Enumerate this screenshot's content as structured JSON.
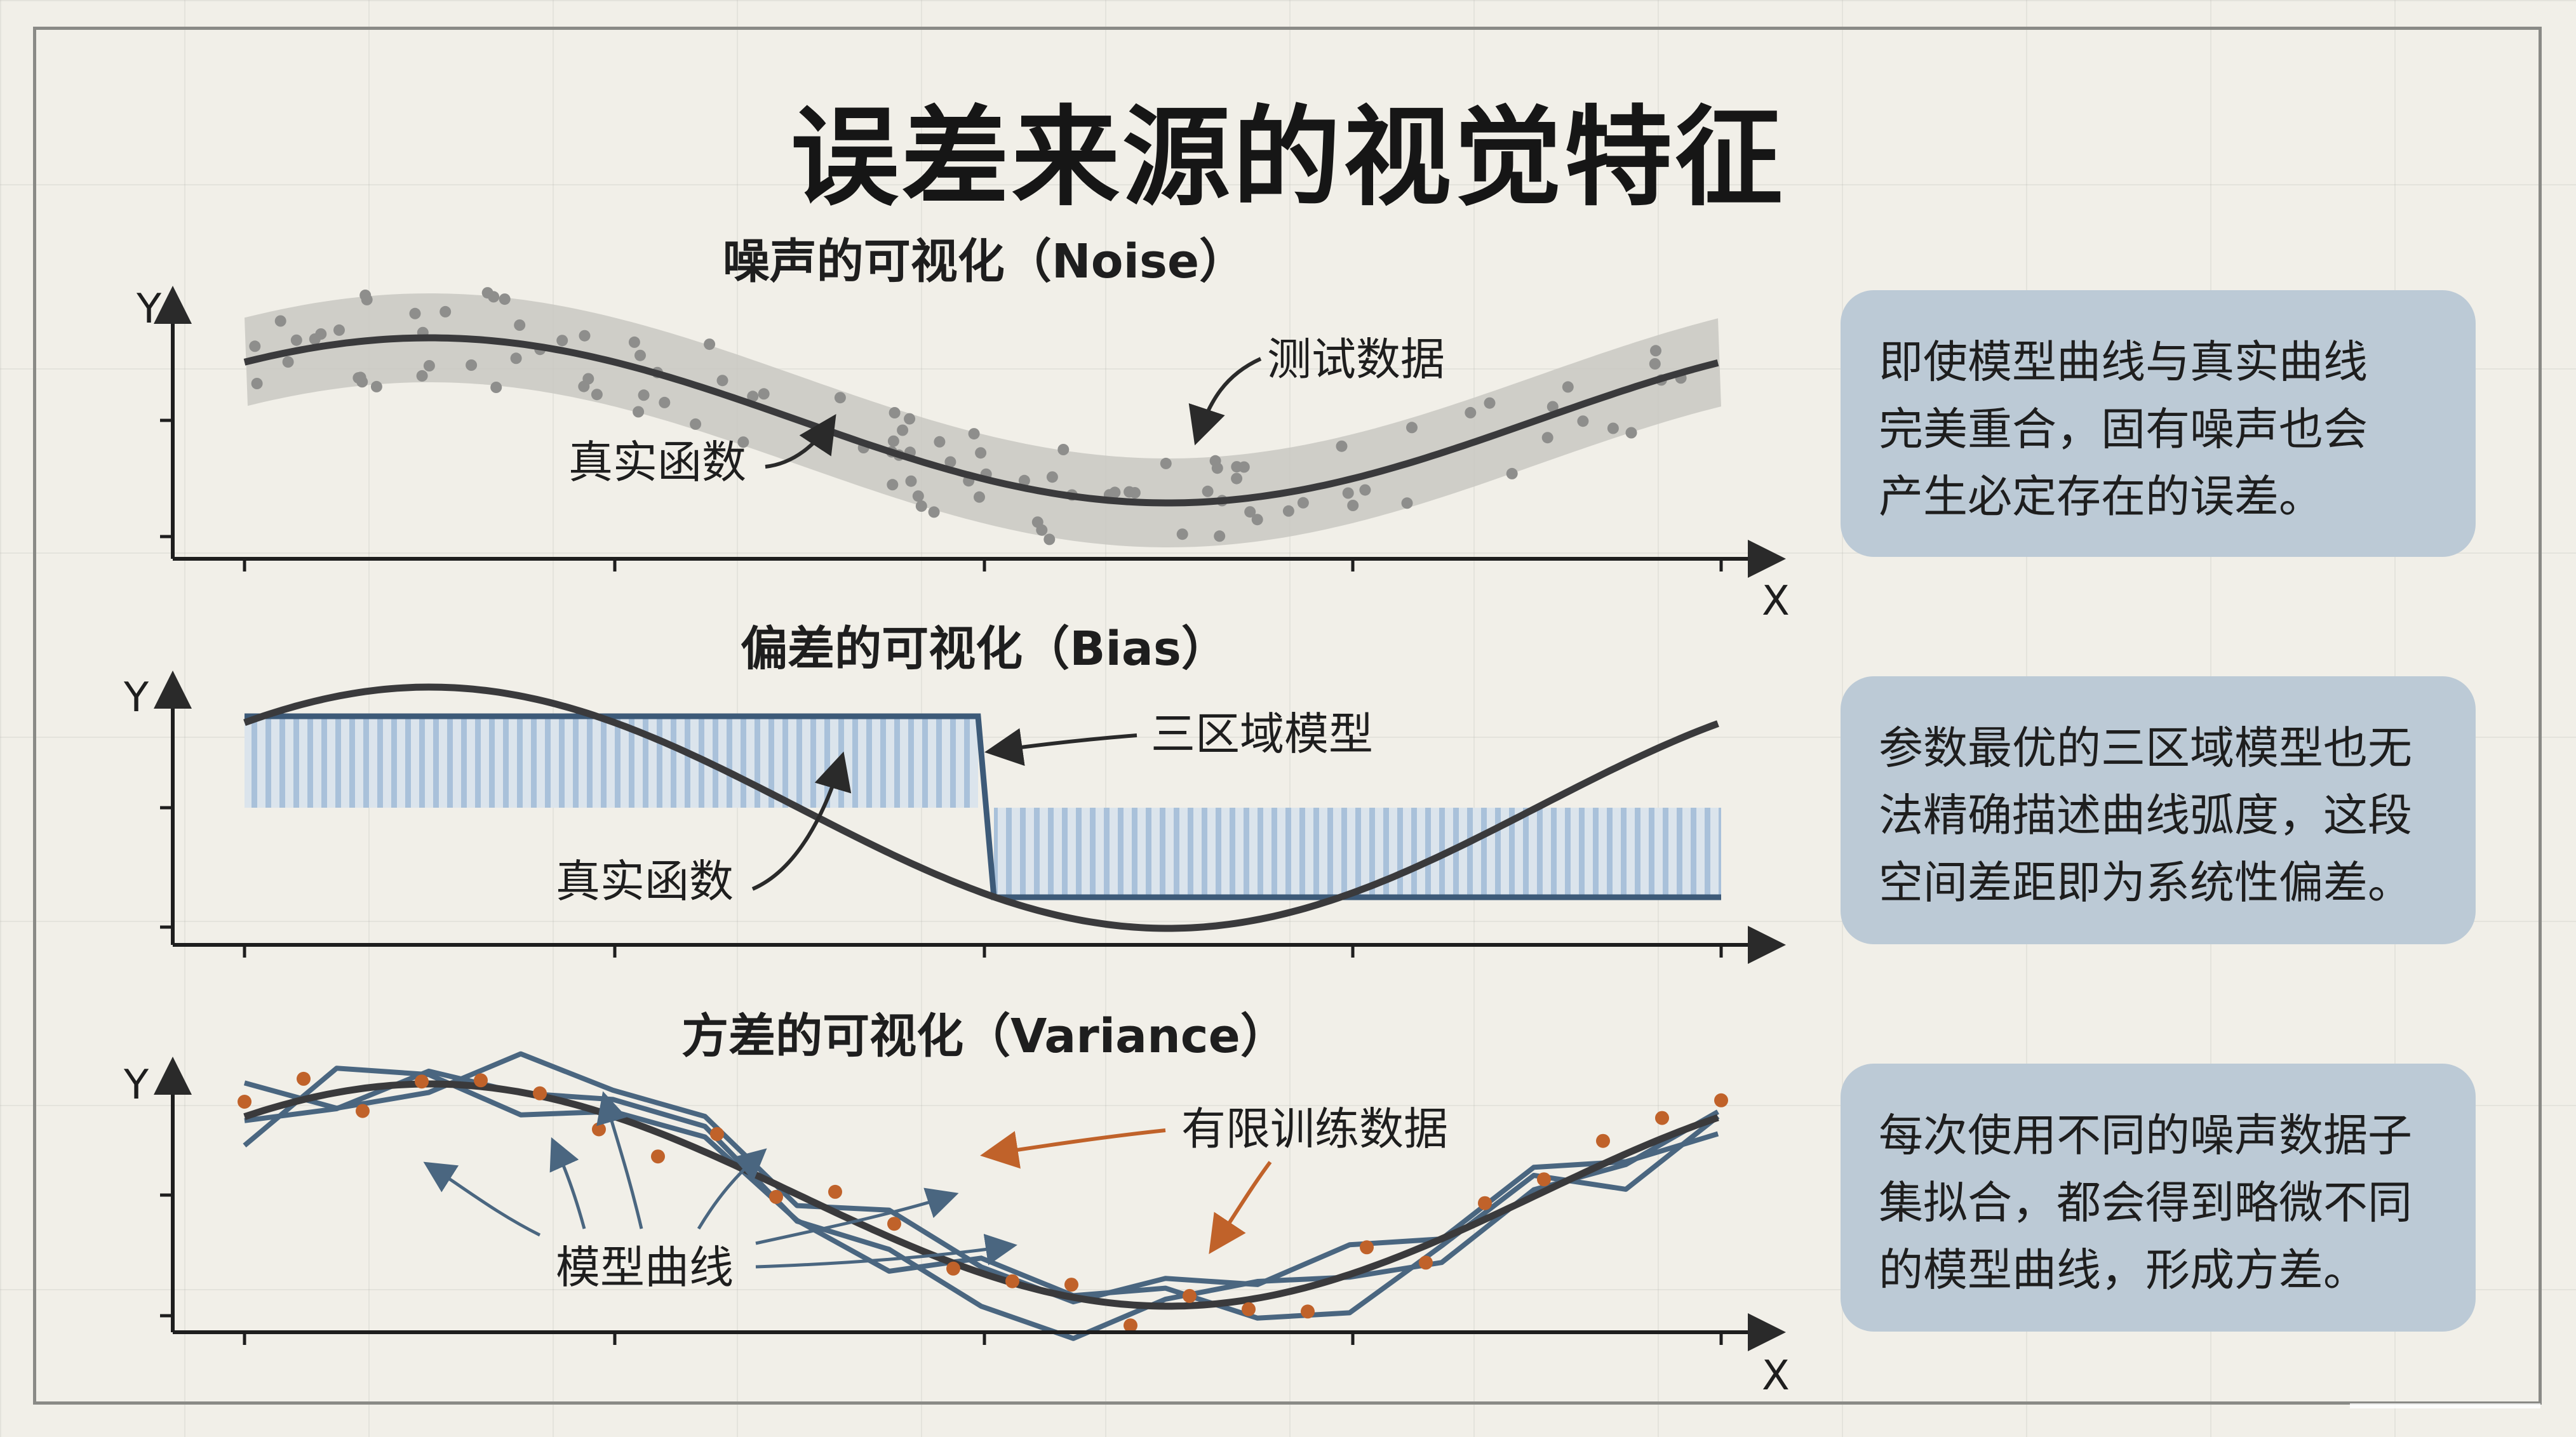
{
  "title": "误差来源的视觉特征",
  "panels": [
    {
      "id": "noise",
      "title": "噪声的可视化（Noise）",
      "annotations": [
        "测试数据",
        "真实函数"
      ],
      "callout_lines": [
        "即使模型曲线与真实曲线",
        "完美重合，固有噪声也会",
        "产生必定存在的误差。"
      ]
    },
    {
      "id": "bias",
      "title": "偏差的可视化（Bias）",
      "annotations": [
        "三区域模型",
        "真实函数"
      ],
      "callout_lines": [
        "参数最优的三区域模型也无",
        "法精确描述曲线弧度，这段",
        "空间差距即为系统性偏差。"
      ]
    },
    {
      "id": "variance",
      "title": "方差的可视化（Variance）",
      "annotations": [
        "有限训练数据",
        "模型曲线"
      ],
      "callout_lines": [
        "每次使用不同的噪声数据子",
        "集拟合，都会得到略微不同",
        "的模型曲线，形成方差。"
      ]
    }
  ],
  "axis_labels": {
    "x": "X",
    "y": "Y"
  },
  "colors": {
    "background": "#f1efe8",
    "curve": "#3a3a3c",
    "noise_band": "#c9c8c2",
    "noise_point": "#8e8e8c",
    "bias_fill": "#a9c1da",
    "bias_model": "#3d5a78",
    "variance_model": "#4a6680",
    "variance_point": "#c0622a",
    "arrow_orange": "#c0622a",
    "callout": "#bccad6"
  }
}
